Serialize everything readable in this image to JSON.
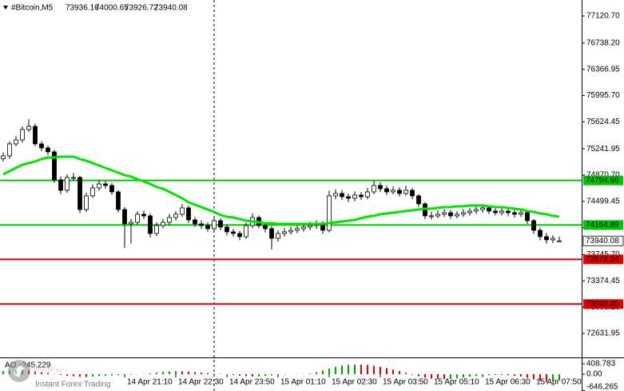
{
  "chart_data": {
    "type": "candlestick",
    "title": "#Bitcoin,M5",
    "open": [
      75100,
      75142,
      75312,
      75368,
      75515,
      75560,
      75312,
      75255,
      75199,
      74803,
      74656,
      74837,
      74837,
      74384,
      74577,
      74690,
      74746,
      74724,
      74633,
      74384,
      74181,
      74203,
      74317,
      74294,
      74045,
      74158,
      74203,
      74271,
      74317,
      74407,
      74237,
      74181,
      74158,
      74113,
      74226,
      74136,
      74068,
      74045,
      74000,
      74158,
      74271,
      74158,
      74113,
      73977,
      74045,
      74068,
      74090,
      74113,
      74136,
      74158,
      74181,
      74090,
      74577,
      74611,
      74565,
      74543,
      74588,
      74565,
      74633,
      74724,
      74678,
      74633,
      74656,
      74611,
      74656,
      74577,
      74464,
      74294,
      74294,
      74317,
      74339,
      74294,
      74317,
      74339,
      74362,
      74384,
      74407,
      74362,
      74339,
      74362,
      74339,
      74317,
      74339,
      74226,
      74090,
      74000,
      73955,
      73936.16
    ],
    "high": [
      75190,
      75350,
      75420,
      75560,
      75660,
      75600,
      75350,
      75290,
      75230,
      74850,
      74880,
      74900,
      74860,
      74620,
      74740,
      74800,
      74790,
      74760,
      74660,
      74420,
      74250,
      74360,
      74370,
      74330,
      74200,
      74250,
      74320,
      74360,
      74460,
      74440,
      74280,
      74230,
      74200,
      74290,
      74260,
      74170,
      74110,
      74080,
      74200,
      74330,
      74300,
      74190,
      74150,
      74090,
      74120,
      74140,
      74160,
      74190,
      74210,
      74230,
      74220,
      74650,
      74670,
      74660,
      74610,
      74640,
      74630,
      74690,
      74790,
      74770,
      74720,
      74710,
      74700,
      74720,
      74690,
      74600,
      74490,
      74350,
      74370,
      74390,
      74380,
      74360,
      74390,
      74410,
      74440,
      74460,
      74440,
      74400,
      74410,
      74400,
      74380,
      74380,
      74370,
      74250,
      74130,
      74050,
      74020,
      74000.65
    ],
    "low": [
      75060,
      75100,
      75280,
      75330,
      75480,
      75280,
      75210,
      75150,
      74760,
      74600,
      74620,
      74790,
      74330,
      74350,
      74550,
      74650,
      74680,
      74590,
      74340,
      73840,
      73900,
      74170,
      74250,
      73990,
      74010,
      74120,
      74160,
      74230,
      74280,
      74190,
      74140,
      74110,
      74070,
      74080,
      74090,
      74020,
      74000,
      73950,
      73970,
      74120,
      74120,
      74060,
      73820,
      73930,
      74000,
      74030,
      74050,
      74070,
      74090,
      74110,
      74040,
      74060,
      74530,
      74520,
      74490,
      74500,
      74520,
      74530,
      74600,
      74630,
      74590,
      74600,
      74570,
      74580,
      74530,
      74420,
      74250,
      74240,
      74260,
      74280,
      74250,
      74260,
      74280,
      74300,
      74320,
      74340,
      74320,
      74300,
      74300,
      74290,
      74270,
      74280,
      74180,
      74040,
      73950,
      73900,
      73910,
      73926.72
    ],
    "close": [
      75142,
      75312,
      75368,
      75515,
      75560,
      75312,
      75255,
      75199,
      74803,
      74656,
      74837,
      74837,
      74384,
      74577,
      74690,
      74746,
      74724,
      74633,
      74384,
      74181,
      74203,
      74317,
      74294,
      74045,
      74158,
      74203,
      74271,
      74317,
      74407,
      74237,
      74181,
      74158,
      74113,
      74226,
      74136,
      74068,
      74045,
      74000,
      74158,
      74271,
      74158,
      74113,
      73977,
      74045,
      74068,
      74090,
      74113,
      74136,
      74158,
      74181,
      74090,
      74577,
      74611,
      74565,
      74543,
      74588,
      74565,
      74633,
      74724,
      74678,
      74633,
      74656,
      74611,
      74656,
      74577,
      74464,
      74294,
      74294,
      74317,
      74339,
      74294,
      74317,
      74339,
      74362,
      74384,
      74407,
      74362,
      74339,
      74362,
      74339,
      74317,
      74339,
      74226,
      74090,
      74000,
      73955,
      73977,
      73940.08
    ],
    "colors": {
      "up": "#ffffff",
      "down": "#000000",
      "edge": "#000000"
    },
    "ylim": [
      72292,
      77347
    ],
    "yticks": [
      {
        "value": 77120.7,
        "label": "77120.70"
      },
      {
        "value": 76738.2,
        "label": "76738.20"
      },
      {
        "value": 76366.95,
        "label": "76366.95"
      },
      {
        "value": 75995.7,
        "label": "75995.70"
      },
      {
        "value": 75624.45,
        "label": "75624.45"
      },
      {
        "value": 75241.95,
        "label": "75241.95"
      },
      {
        "value": 74870.7,
        "label": "74870.70"
      },
      {
        "value": 74499.45,
        "label": "74499.45"
      },
      {
        "value": 74128.2,
        "label": "74128.20"
      },
      {
        "value": 73745.7,
        "label": "73745.70"
      },
      {
        "value": 73374.45,
        "label": "73374.45"
      },
      {
        "value": 73003.2,
        "label": "73003.20"
      },
      {
        "value": 72631.95,
        "label": "72631.95"
      }
    ],
    "xticks": [
      {
        "value": 19,
        "label": "14 Apr 21:10"
      },
      {
        "value": 27,
        "label": "14 Apr 22:30"
      },
      {
        "value": 35,
        "label": "14 Apr 23:50"
      },
      {
        "value": 43,
        "label": "15 Apr 01:10"
      },
      {
        "value": 51,
        "label": "15 Apr 02:30"
      },
      {
        "value": 59,
        "label": "15 Apr 03:50"
      },
      {
        "value": 67,
        "label": "15 Apr 05:10"
      },
      {
        "value": 75,
        "label": "15 Apr 06:30"
      },
      {
        "value": 83,
        "label": "15 Apr 07:50"
      }
    ],
    "ma": {
      "color": "#00e600",
      "values": [
        74882,
        74927,
        74972,
        75017,
        75040,
        75063,
        75097,
        75119,
        75119,
        75131,
        75131,
        75131,
        75097,
        75074,
        75040,
        75006,
        74972,
        74938,
        74904,
        74870,
        74848,
        74814,
        74780,
        74746,
        74701,
        74678,
        74633,
        74588,
        74543,
        74486,
        74452,
        74418,
        74384,
        74350,
        74305,
        74282,
        74271,
        74249,
        74226,
        74215,
        74203,
        74192,
        74192,
        74181,
        74181,
        74181,
        74181,
        74181,
        74181,
        74181,
        74181,
        74192,
        74203,
        74215,
        74226,
        74237,
        74260,
        74282,
        74294,
        74317,
        74328,
        74339,
        74350,
        74362,
        74373,
        74384,
        74395,
        74395,
        74407,
        74418,
        74418,
        74430,
        74430,
        74441,
        74441,
        74441,
        74430,
        74418,
        74418,
        74407,
        74395,
        74384,
        74362,
        74350,
        74328,
        74317,
        74294,
        74282
      ]
    },
    "levels": [
      {
        "value": 74794.96,
        "color": "#00c800",
        "text_color": "#000000"
      },
      {
        "value": 74164.89,
        "color": "#00c800",
        "text_color": "#000000"
      },
      {
        "value": 73678.24,
        "color": "#e00000",
        "text_color": "#ffffff"
      },
      {
        "value": 73046.4,
        "label": "73046.40",
        "color": "#e00000",
        "text_color": "#ffffff"
      }
    ],
    "indicator": {
      "name": "AO",
      "up_color": "#00a000",
      "down_color": "#e00000",
      "values": [
        120,
        140,
        160,
        170,
        150,
        110,
        80,
        50,
        10,
        -30,
        -60,
        -80,
        -100,
        -110,
        -90,
        -70,
        -60,
        -50,
        -40,
        -30,
        -20,
        -10,
        10,
        30,
        60,
        90,
        110,
        120,
        115,
        100,
        80,
        60,
        40,
        20,
        10,
        -10,
        -30,
        -60,
        -80,
        -90,
        -85,
        -70,
        -50,
        -30,
        -15,
        -5,
        5,
        10,
        20,
        80,
        150,
        220,
        290,
        340,
        370,
        380,
        375,
        360,
        330,
        290,
        240,
        180,
        120,
        50,
        -20,
        -80,
        -130,
        -170,
        -190,
        -195,
        -180,
        -160,
        -130,
        -100,
        -70,
        -50,
        -40,
        -30,
        -30,
        -40,
        -60,
        -90,
        -140,
        -200,
        -260,
        -310,
        -280,
        -245.229
      ],
      "ylim": [
        -660,
        597
      ],
      "yticks": [
        408.783,
        {
          "value": 0,
          "label": "0.00"
        },
        -646.265
      ]
    }
  },
  "watermark": {
    "brand": "instaforex",
    "tagline": "Instant Forex Trading"
  }
}
